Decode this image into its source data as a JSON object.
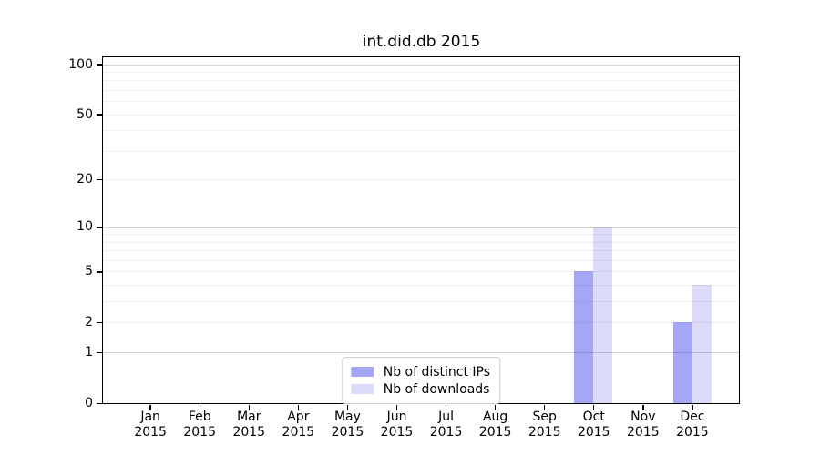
{
  "chart_data": {
    "type": "bar",
    "title": "int.did.db 2015",
    "categories": [
      "Jan 2015",
      "Feb 2015",
      "Mar 2015",
      "Apr 2015",
      "May 2015",
      "Jun 2015",
      "Jul 2015",
      "Aug 2015",
      "Sep 2015",
      "Oct 2015",
      "Nov 2015",
      "Dec 2015"
    ],
    "series": [
      {
        "name": "Nb of distinct IPs",
        "color": "#a6a6f7",
        "values": [
          0,
          0,
          0,
          0,
          0,
          0,
          0,
          0,
          0,
          5,
          0,
          2
        ]
      },
      {
        "name": "Nb of downloads",
        "color": "#dcdcfa",
        "values": [
          0,
          0,
          0,
          0,
          0,
          0,
          0,
          0,
          0,
          10,
          0,
          4
        ]
      }
    ],
    "xlabel": "",
    "ylabel": "",
    "yscale": "log1p",
    "ylim": [
      0,
      110
    ],
    "yticks": [
      0,
      1,
      2,
      5,
      10,
      20,
      50,
      100
    ],
    "major_gridline_values": [
      1,
      10,
      100
    ],
    "minor_gridline_values": [
      2,
      3,
      4,
      5,
      6,
      7,
      8,
      9,
      20,
      30,
      40,
      50,
      60,
      70,
      80,
      90
    ],
    "grid": true,
    "legend_position": "lower center",
    "frame_color": "#000000",
    "background_color": "#ffffff"
  }
}
